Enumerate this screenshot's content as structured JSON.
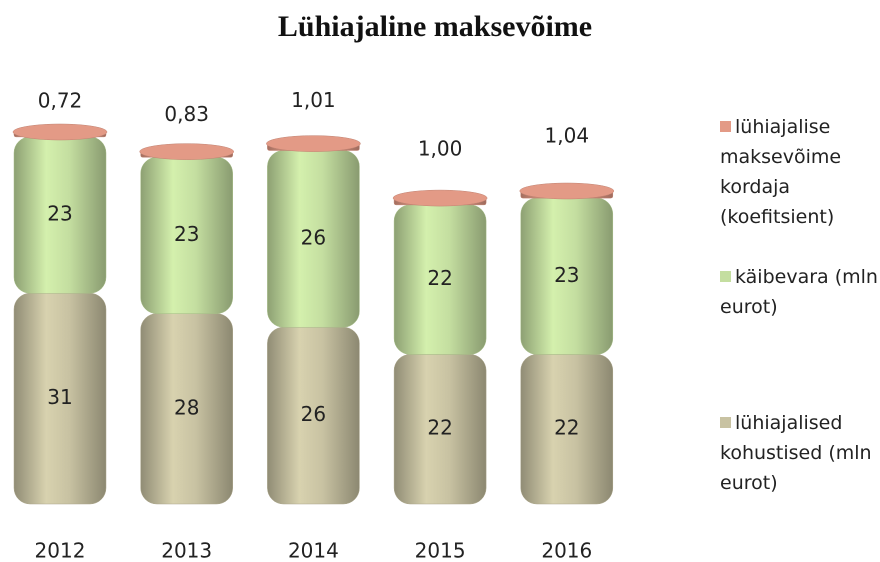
{
  "chart_data": {
    "type": "stacked_bar",
    "title": "Lühiajaline maksevõime",
    "categories": [
      "2012",
      "2013",
      "2014",
      "2015",
      "2016"
    ],
    "series": [
      {
        "name": "lühiajalised kohustised (mln eurot)",
        "color": "#c8c2a2",
        "values": [
          31,
          28,
          26,
          22,
          22
        ]
      },
      {
        "name": "käibevara (mln eurot)",
        "color": "#c4dea0",
        "values": [
          23,
          23,
          26,
          22,
          23
        ]
      },
      {
        "name": "lühiajalise maksevõime kordaja (koefitsient)",
        "color": "#e39a86",
        "values": [
          0.72,
          0.83,
          1.01,
          1.0,
          1.04
        ],
        "value_labels": [
          "0,72",
          "0,83",
          "1,01",
          "1,00",
          "1,04"
        ]
      }
    ]
  }
}
